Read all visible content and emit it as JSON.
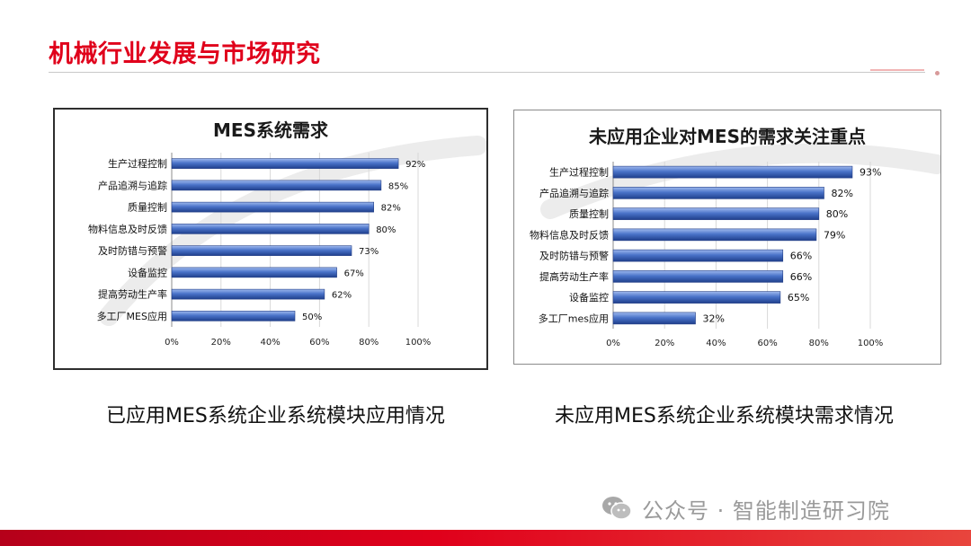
{
  "slide": {
    "title": "机械行业发展与市场研究",
    "caption_left": "已应用MES系统企业系统模块应用情况",
    "caption_right": "未应用MES系统企业系统模块需求情况",
    "watermark": "公众号 · 智能制造研习院",
    "colors": {
      "accent": "#e0001b",
      "bar": "#4a73c9",
      "bar_dark": "#1f3f8c"
    }
  },
  "chart_data": [
    {
      "type": "bar",
      "orientation": "horizontal",
      "title": "MES系统需求",
      "categories": [
        "生产过程控制",
        "产品追溯与追踪",
        "质量控制",
        "物料信息及时反馈",
        "及时防错与预警",
        "设备监控",
        "提高劳动生产率",
        "多工厂MES应用"
      ],
      "values": [
        92,
        85,
        82,
        80,
        73,
        67,
        62,
        50
      ],
      "value_labels": [
        "92%",
        "85%",
        "82%",
        "80%",
        "73%",
        "67%",
        "62%",
        "50%"
      ],
      "x_ticks": [
        "0%",
        "20%",
        "40%",
        "60%",
        "80%",
        "100%"
      ],
      "xlim": [
        0,
        100
      ],
      "grid": true
    },
    {
      "type": "bar",
      "orientation": "horizontal",
      "title": "未应用企业对MES的需求关注重点",
      "categories": [
        "生产过程控制",
        "产品追溯与追踪",
        "质量控制",
        "物料信息及时反馈",
        "及时防错与预警",
        "提高劳动生产率",
        "设备监控",
        "多工厂mes应用"
      ],
      "values": [
        93,
        82,
        80,
        79,
        66,
        66,
        65,
        32
      ],
      "value_labels": [
        "93%",
        "82%",
        "80%",
        "79%",
        "66%",
        "66%",
        "65%",
        "32%"
      ],
      "x_ticks": [
        "0%",
        "20%",
        "40%",
        "60%",
        "80%",
        "100%"
      ],
      "xlim": [
        0,
        100
      ],
      "grid": true
    }
  ]
}
